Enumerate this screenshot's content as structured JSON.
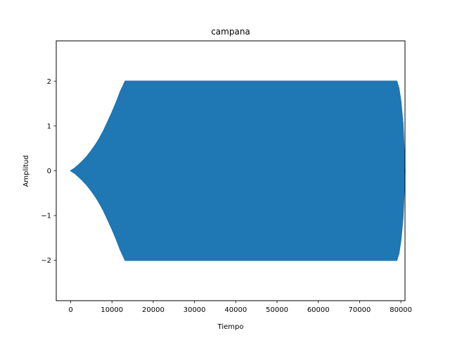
{
  "chart_data": {
    "type": "area",
    "title": "campana",
    "xlabel": "Tiempo",
    "ylabel": "Amplitud",
    "xlim": [
      -3500,
      81000
    ],
    "ylim": [
      -2.9,
      2.9
    ],
    "x_ticks": [
      0,
      10000,
      20000,
      30000,
      40000,
      50000,
      60000,
      70000,
      80000
    ],
    "x_tick_labels": [
      "0",
      "10000",
      "20000",
      "30000",
      "40000",
      "50000",
      "60000",
      "70000",
      "80000"
    ],
    "y_ticks": [
      -2,
      -1,
      0,
      1,
      2
    ],
    "y_tick_labels": [
      "−2",
      "−1",
      "0",
      "1",
      "2"
    ],
    "grid": false,
    "legend": "none",
    "series": [
      {
        "color": "#1f77b4",
        "envelope": {
          "x": [
            0,
            1000,
            2000,
            3000,
            4000,
            5000,
            6000,
            7000,
            8000,
            9000,
            10000,
            11000,
            12000,
            13200,
            79000,
            79500,
            80000,
            80500,
            81000
          ],
          "upper": [
            0,
            0.06,
            0.14,
            0.23,
            0.33,
            0.45,
            0.58,
            0.73,
            0.9,
            1.1,
            1.3,
            1.52,
            1.76,
            2.0,
            2.0,
            1.85,
            1.55,
            1.05,
            0.0
          ],
          "lower": [
            0,
            -0.06,
            -0.14,
            -0.23,
            -0.33,
            -0.45,
            -0.58,
            -0.73,
            -0.9,
            -1.1,
            -1.3,
            -1.52,
            -1.76,
            -2.0,
            -2.0,
            -1.85,
            -1.55,
            -1.05,
            0.0
          ]
        }
      }
    ]
  }
}
